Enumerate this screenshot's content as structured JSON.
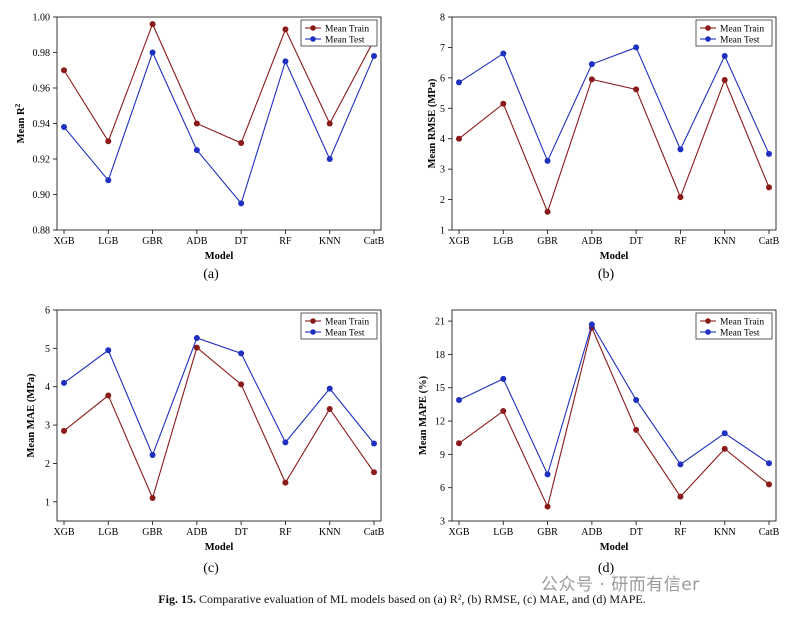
{
  "caption": {
    "label": "Fig. 15.",
    "text": "Comparative evaluation of ML models based on (a) R², (b) RMSE, (c) MAE, and (d) MAPE."
  },
  "watermark": {
    "text": "公众号 · 研而有信er"
  },
  "colors": {
    "train": "#8b1a1a",
    "test": "#1f2fbf"
  },
  "chart_data": [
    {
      "id": "a",
      "panel_label": "(a)",
      "type": "line",
      "xlabel": "Model",
      "ylabel": "Mean R",
      "ylim": [
        0.88,
        1.0
      ],
      "yticks": [
        "0.88",
        "0.90",
        "0.92",
        "0.94",
        "0.96",
        "0.98",
        "1.00"
      ],
      "categories": [
        "XGB",
        "LGB",
        "GBR",
        "ADB",
        "DT",
        "RF",
        "KNN",
        "CatB"
      ],
      "legend_position": "top-right",
      "series": [
        {
          "name": "Mean Train",
          "values": [
            0.97,
            0.93,
            0.996,
            0.94,
            0.929,
            0.993,
            0.94,
            0.987
          ]
        },
        {
          "name": "Mean Test",
          "values": [
            0.938,
            0.908,
            0.98,
            0.925,
            0.895,
            0.975,
            0.92,
            0.978
          ]
        }
      ]
    },
    {
      "id": "b",
      "panel_label": "(b)",
      "type": "line",
      "xlabel": "Model",
      "ylabel": "Mean RMSE (MPa)",
      "ylim": [
        1,
        8
      ],
      "yticks": [
        "1",
        "2",
        "3",
        "4",
        "5",
        "6",
        "7",
        "8"
      ],
      "categories": [
        "XGB",
        "LGB",
        "GBR",
        "ADB",
        "DT",
        "RF",
        "KNN",
        "CatB"
      ],
      "legend_position": "top-right",
      "series": [
        {
          "name": "Mean Train",
          "values": [
            4.0,
            5.15,
            1.6,
            5.95,
            5.62,
            2.08,
            5.93,
            2.4
          ]
        },
        {
          "name": "Mean Test",
          "values": [
            5.85,
            6.8,
            3.27,
            6.45,
            7.0,
            3.65,
            6.72,
            3.5
          ]
        }
      ]
    },
    {
      "id": "c",
      "panel_label": "(c)",
      "type": "line",
      "xlabel": "Model",
      "ylabel": "Mean MAE (MPa)",
      "ylim": [
        0.5,
        6
      ],
      "yticks": [
        "1",
        "2",
        "3",
        "4",
        "5",
        "6"
      ],
      "categories": [
        "XGB",
        "LGB",
        "GBR",
        "ADB",
        "DT",
        "RF",
        "KNN",
        "CatB"
      ],
      "legend_position": "top-right",
      "series": [
        {
          "name": "Mean Train",
          "values": [
            2.85,
            3.77,
            1.1,
            5.02,
            4.06,
            1.5,
            3.42,
            1.77
          ]
        },
        {
          "name": "Mean Test",
          "values": [
            4.1,
            4.95,
            2.22,
            5.27,
            4.87,
            2.55,
            3.95,
            2.52
          ]
        }
      ]
    },
    {
      "id": "d",
      "panel_label": "(d)",
      "type": "line",
      "xlabel": "Model",
      "ylabel": "Mean MAPE (%)",
      "ylim": [
        3,
        22
      ],
      "yticks": [
        "3",
        "6",
        "9",
        "12",
        "15",
        "18",
        "21"
      ],
      "categories": [
        "XGB",
        "LGB",
        "GBR",
        "ADB",
        "DT",
        "RF",
        "KNN",
        "CatB"
      ],
      "legend_position": "top-right",
      "series": [
        {
          "name": "Mean Train",
          "values": [
            10.0,
            12.9,
            4.3,
            20.4,
            11.2,
            5.2,
            9.5,
            6.3
          ]
        },
        {
          "name": "Mean Test",
          "values": [
            13.9,
            15.8,
            7.2,
            20.7,
            13.9,
            8.1,
            10.9,
            8.2
          ]
        }
      ]
    }
  ]
}
